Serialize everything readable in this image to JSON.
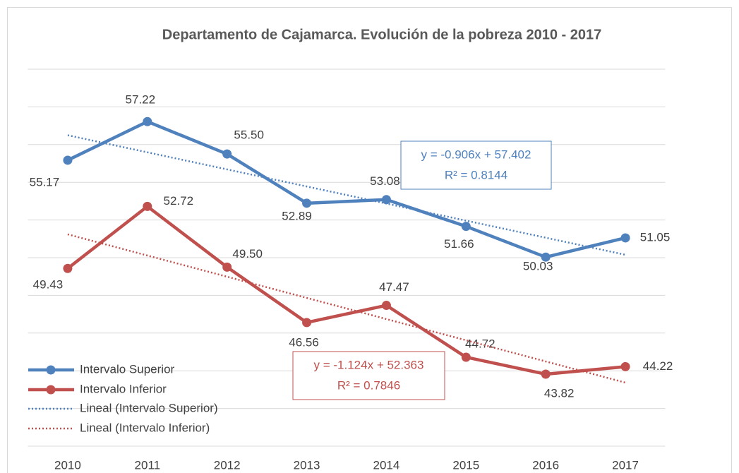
{
  "chart_data": {
    "type": "line",
    "title": "Departamento de Cajamarca. Evolución de la pobreza 2010 - 2017",
    "categories": [
      "2010",
      "2011",
      "2012",
      "2013",
      "2014",
      "2015",
      "2016",
      "2017"
    ],
    "ylim": [
      40,
      60
    ],
    "yticks": [
      40,
      42,
      44,
      46,
      48,
      50,
      52,
      54,
      56,
      58,
      60
    ],
    "grid": true,
    "legend": "bottom-left",
    "series": [
      {
        "name": "Intervalo Superior",
        "color": "#4f81bd",
        "values": [
          55.17,
          57.22,
          55.5,
          52.89,
          53.08,
          51.66,
          50.03,
          51.05
        ],
        "value_labels": [
          "55.17",
          "57.22",
          "55.50",
          "52.89",
          "53.08",
          "51.66",
          "50.03",
          "51.05"
        ]
      },
      {
        "name": "Intervalo Inferior",
        "color": "#c0504d",
        "values": [
          49.43,
          52.72,
          49.5,
          46.56,
          47.47,
          44.72,
          43.82,
          44.22
        ],
        "value_labels": [
          "49.43",
          "52.72",
          "49.50",
          "46.56",
          "47.47",
          "44.72",
          "43.82",
          "44.22"
        ]
      },
      {
        "name": "Lineal (Intervalo Superior)",
        "color": "#4f81bd",
        "trend": true,
        "slope": -0.906,
        "intercept": 57.402,
        "equation": "y = -0.906x + 57.402",
        "r2_label": "R² = 0.8144"
      },
      {
        "name": "Lineal (Intervalo Inferior)",
        "color": "#c0504d",
        "trend": true,
        "slope": -1.124,
        "intercept": 52.363,
        "equation": "y = -1.124x + 52.363",
        "r2_label": "R² = 0.7846"
      }
    ]
  }
}
